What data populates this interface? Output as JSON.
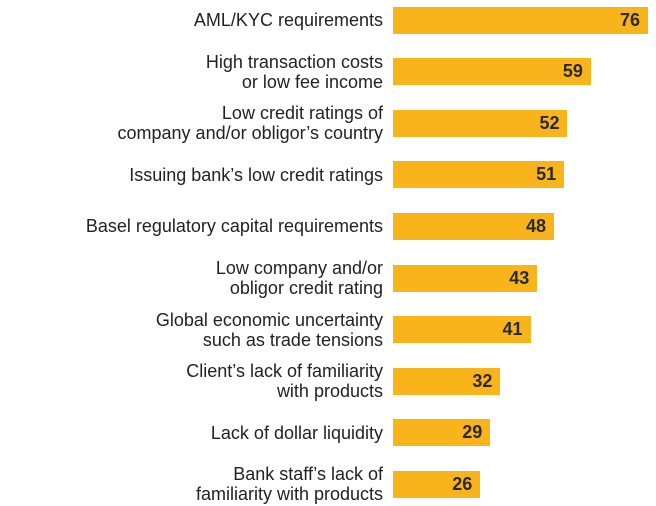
{
  "chart_data": {
    "type": "bar",
    "orientation": "horizontal",
    "color": "#f9b31b",
    "categories": [
      "AML/KYC requirements",
      "High transaction costs\nor low fee income",
      "Low credit ratings of\ncompany and/or obligor’s country",
      "Issuing bank’s low credit ratings",
      "Basel regulatory capital requirements",
      "Low company and/or\nobligor credit rating",
      "Global economic uncertainty\nsuch as trade tensions",
      "Client’s lack of familiarity\nwith products",
      "Lack of dollar liquidity",
      "Bank staff’s lack of\nfamiliarity with products"
    ],
    "values": [
      76,
      59,
      52,
      51,
      48,
      43,
      41,
      32,
      29,
      26
    ]
  }
}
